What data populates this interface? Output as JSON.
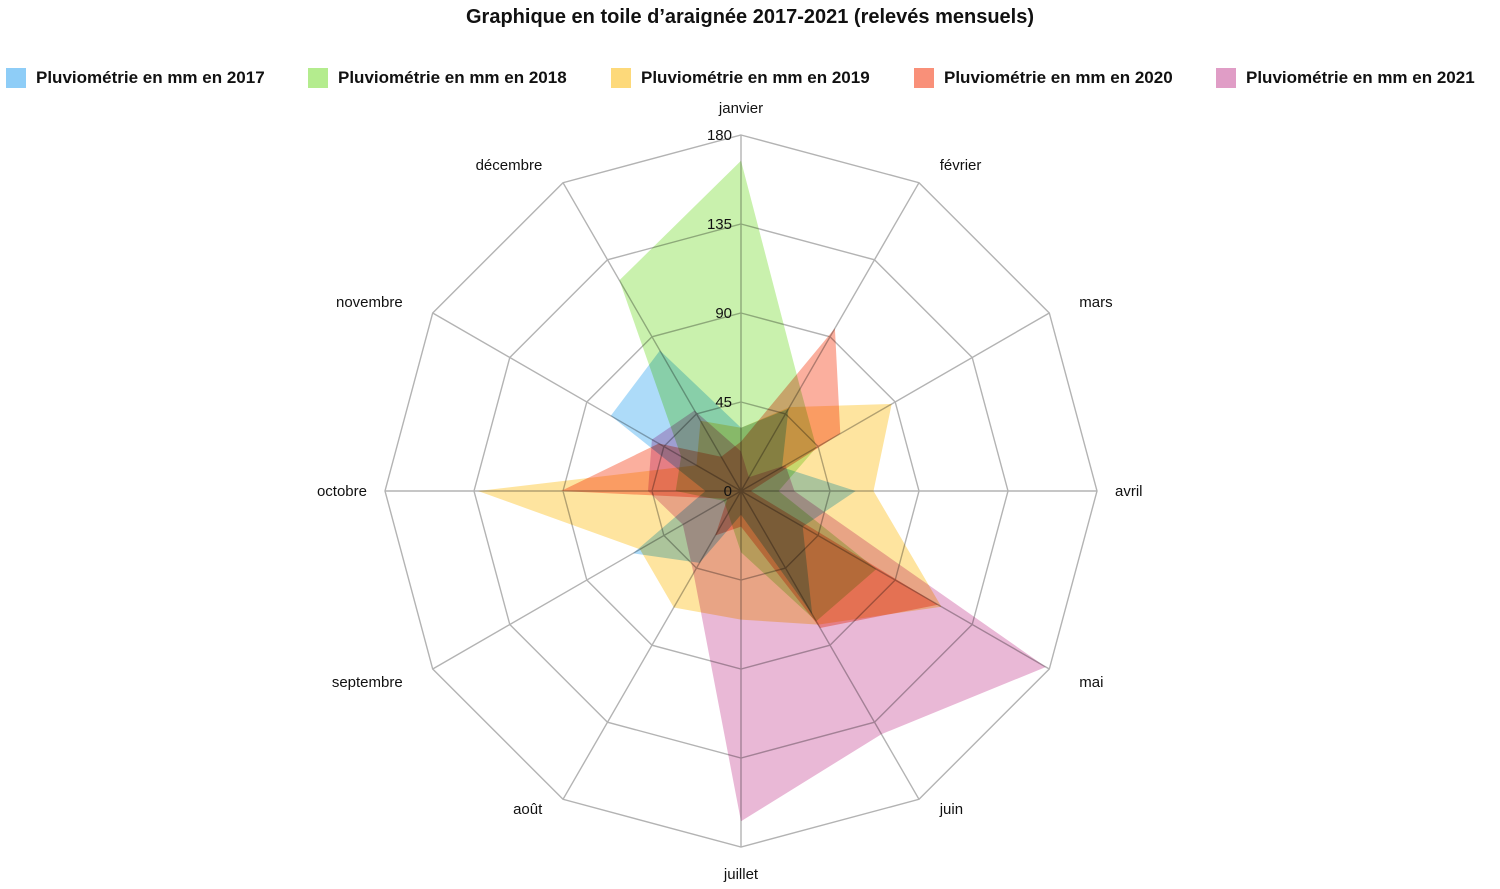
{
  "chart_data": {
    "type": "radar",
    "title": "Graphique en toile d’araignée 2017-2021 (relevés mensuels)",
    "categories": [
      "janvier",
      "février",
      "mars",
      "avril",
      "mai",
      "juin",
      "juillet",
      "août",
      "septembre",
      "octobre",
      "novembre",
      "décembre"
    ],
    "rlim": [
      0,
      180
    ],
    "ticks": [
      0,
      45,
      90,
      135,
      180
    ],
    "grid": true,
    "legend_position": "top",
    "series": [
      {
        "name": "Pluviométrie en mm en 2017",
        "color": "#8ecdf7",
        "values": [
          32,
          48,
          24,
          58,
          36,
          72,
          12,
          42,
          63,
          18,
          76,
          82
        ]
      },
      {
        "name": "Pluviométrie en mm en 2018",
        "color": "#b4ec8e",
        "values": [
          167,
          60,
          44,
          19,
          79,
          76,
          31,
          13,
          10,
          33,
          35,
          123
        ]
      },
      {
        "name": "Pluviométrie en mm en 2019",
        "color": "#fdd97a",
        "values": [
          32,
          49,
          88,
          67,
          117,
          78,
          65,
          68,
          59,
          133,
          26,
          41
        ]
      },
      {
        "name": "Pluviométrie en mm en 2020",
        "color": "#f99079",
        "values": [
          25,
          95,
          58,
          5,
          115,
          80,
          18,
          26,
          8,
          91,
          48,
          20
        ]
      },
      {
        "name": "Pluviométrie en mm en 2021",
        "color": "#e09dc6",
        "values": [
          20,
          8,
          26,
          27,
          178,
          142,
          167,
          48,
          34,
          47,
          52,
          47
        ]
      }
    ]
  }
}
